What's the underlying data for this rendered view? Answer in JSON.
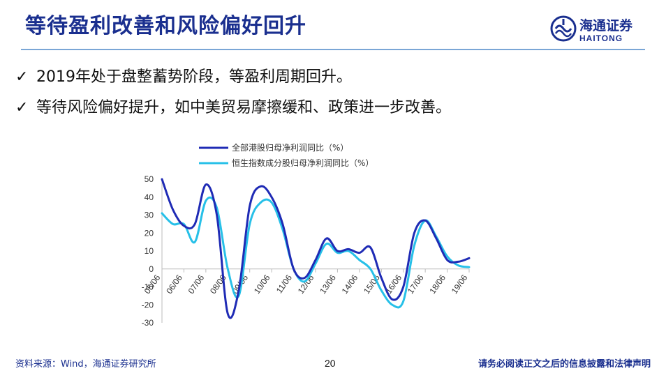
{
  "title": "等待盈利改善和风险偏好回升",
  "logo": {
    "cn": "海通证券",
    "en": "HAITONG"
  },
  "bullets": [
    "2019年处于盘整蓄势阶段，等盈利周期回升。",
    "等待风险偏好提升，如中美贸易摩擦缓和、政策进一步改善。"
  ],
  "colors": {
    "title": "#1a2f8f",
    "series1": "#1f2bb5",
    "series2": "#27c0e8",
    "rule": "#7aa6d6"
  },
  "chart_data": {
    "type": "line",
    "xlabel": "",
    "ylabel": "",
    "ylim": [
      -30,
      50
    ],
    "yticks": [
      50,
      40,
      30,
      20,
      10,
      0,
      -10,
      -20,
      -30
    ],
    "x": [
      2005.5,
      2006.0,
      2006.5,
      2007.0,
      2007.5,
      2008.0,
      2008.5,
      2009.0,
      2009.5,
      2010.0,
      2010.5,
      2011.0,
      2011.5,
      2012.0,
      2012.5,
      2013.0,
      2013.5,
      2014.0,
      2014.5,
      2015.0,
      2015.5,
      2016.0,
      2016.5,
      2017.0,
      2017.5,
      2018.0,
      2018.5,
      2019.0,
      2019.5
    ],
    "categories": [
      "05/06",
      "06/06",
      "07/06",
      "08/06",
      "09/06",
      "10/06",
      "11/06",
      "12/06",
      "13/06",
      "14/06",
      "15/06",
      "16/06",
      "17/06",
      "18/06",
      "19/06"
    ],
    "grid": false,
    "legend": "top",
    "series": [
      {
        "name": "全部港股归母净利润同比（%）",
        "color": "#1f2bb5",
        "values": [
          50,
          33,
          24,
          25,
          47,
          30,
          -25,
          -12,
          35,
          46,
          40,
          25,
          0,
          -5,
          5,
          17,
          10,
          11,
          9,
          12,
          -5,
          -17,
          -10,
          20,
          27,
          17,
          5,
          4,
          6
        ]
      },
      {
        "name": "恒生指数成分股归母净利润同比（%）",
        "color": "#27c0e8",
        "values": [
          31,
          25,
          25,
          15,
          38,
          34,
          0,
          -15,
          25,
          37,
          37,
          22,
          0,
          -7,
          3,
          14,
          9,
          10,
          5,
          0,
          -12,
          -20,
          -18,
          13,
          27,
          18,
          7,
          2,
          1
        ]
      }
    ]
  },
  "footer": {
    "source": "资料来源：Wind，海通证券研究所",
    "page": "20",
    "disclaimer": "请务必阅读正文之后的信息披露和法律声明"
  }
}
